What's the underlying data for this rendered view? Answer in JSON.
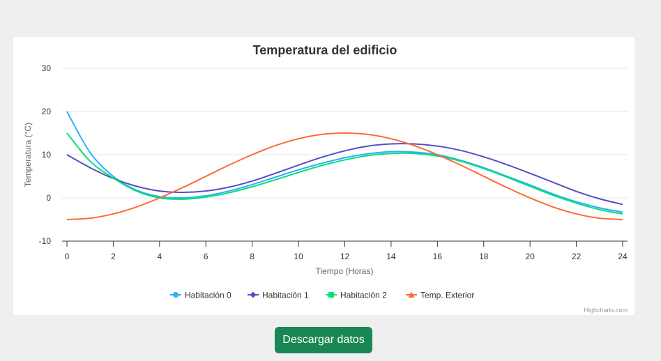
{
  "chart_data": {
    "type": "line",
    "title": "Temperatura del edificio",
    "xlabel": "Tiempo (Horas)",
    "ylabel": "Temperatura (°C)",
    "xlim": [
      0,
      24
    ],
    "ylim": [
      -10,
      30
    ],
    "x_ticks": [
      "0",
      "2",
      "4",
      "6",
      "8",
      "10",
      "12",
      "14",
      "16",
      "18",
      "20",
      "22",
      "24"
    ],
    "y_ticks": [
      "-10",
      "0",
      "10",
      "20",
      "30"
    ],
    "x": [
      0,
      1,
      2,
      3,
      4,
      5,
      6,
      7,
      8,
      9,
      10,
      11,
      12,
      13,
      14,
      15,
      16,
      17,
      18,
      19,
      20,
      21,
      22,
      23,
      24
    ],
    "grid": true,
    "legend_position": "bottom-center",
    "series": [
      {
        "name": "Habitación 0",
        "color": "#2caffe",
        "marker": "circle",
        "values": [
          20,
          10.5,
          5,
          1.8,
          0.3,
          0.0,
          0.5,
          1.6,
          3.1,
          4.8,
          6.5,
          8.0,
          9.3,
          10.2,
          10.7,
          10.6,
          10.0,
          8.7,
          7.0,
          5.0,
          3.0,
          0.9,
          -0.9,
          -2.3,
          -3.3
        ]
      },
      {
        "name": "Habitación 1",
        "color": "#544fc5",
        "marker": "diamond",
        "values": [
          10,
          7.0,
          4.5,
          2.7,
          1.6,
          1.3,
          1.6,
          2.5,
          3.9,
          5.7,
          7.6,
          9.4,
          10.9,
          12.0,
          12.5,
          12.5,
          12.0,
          11.0,
          9.5,
          7.7,
          5.7,
          3.6,
          1.5,
          -0.2,
          -1.5
        ]
      },
      {
        "name": "Habitación 2",
        "color": "#00e272",
        "marker": "square",
        "values": [
          15,
          8.5,
          4.6,
          1.6,
          0.0,
          -0.3,
          0.2,
          1.2,
          2.6,
          4.2,
          5.9,
          7.5,
          8.8,
          9.8,
          10.3,
          10.3,
          9.7,
          8.5,
          6.8,
          4.8,
          2.7,
          0.6,
          -1.2,
          -2.7,
          -3.7
        ]
      },
      {
        "name": "Temp. Exterior",
        "color": "#fe6a35",
        "marker": "triangle",
        "values": [
          -5,
          -4.7,
          -3.7,
          -2.1,
          0,
          2.4,
          5,
          7.6,
          10,
          12.1,
          13.7,
          14.7,
          15,
          14.7,
          13.7,
          12.1,
          10,
          7.6,
          5,
          2.4,
          0,
          -2.1,
          -3.7,
          -4.7,
          -5
        ]
      }
    ]
  },
  "credits": "Highcharts.com",
  "download_button": {
    "label": "Descargar datos",
    "color": "#198754"
  }
}
